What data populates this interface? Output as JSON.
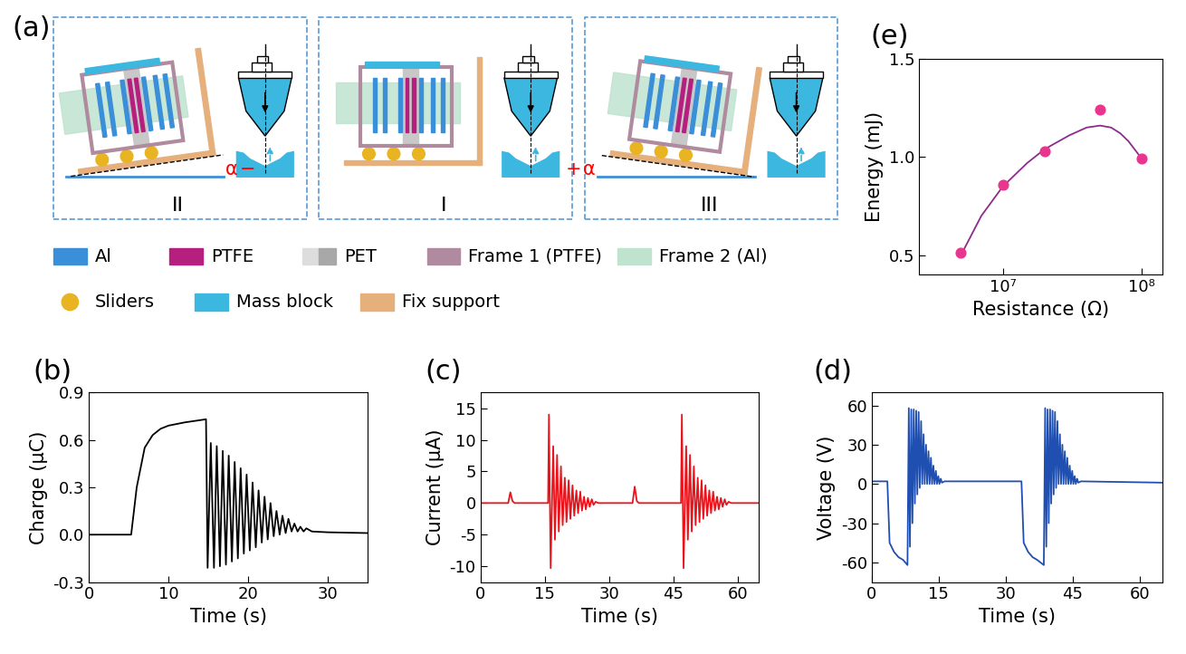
{
  "diagram": {
    "title": "(a)",
    "states": [
      {
        "label": "II",
        "angle": "α",
        "sign": "−"
      },
      {
        "label": "I"
      },
      {
        "label": "III",
        "angle": "α",
        "sign": "+"
      }
    ],
    "legend": [
      {
        "label": "Al",
        "color": "#3b8fd9"
      },
      {
        "label": "PTFE",
        "color": "#b5207e"
      },
      {
        "label": "PET",
        "color": "#c8c8c8"
      },
      {
        "label": "Frame 1 (PTFE)",
        "color": "#b08a9e"
      },
      {
        "label": "Frame 2 (Al)",
        "color": "#bfe3cf"
      },
      {
        "label": "Sliders",
        "color": "#e8b422"
      },
      {
        "label": "Mass block",
        "color": "#3cb7e0"
      },
      {
        "label": "Fix support",
        "color": "#e6b07c"
      }
    ]
  },
  "chart_data": [
    {
      "type": "line",
      "title": "(b)",
      "x_label": "Time (s)",
      "y_label": "Charge (μC)",
      "color": "#000000",
      "x": [
        0,
        5.3,
        6,
        7,
        8,
        9,
        10,
        12,
        14.7,
        14.9,
        15.3,
        15.7,
        16.05,
        16.45,
        16.8,
        17.2,
        17.55,
        17.95,
        18.3,
        18.7,
        19.05,
        19.45,
        19.8,
        20.2,
        20.55,
        20.95,
        21.3,
        21.7,
        22.05,
        22.45,
        22.8,
        23.2,
        23.55,
        23.95,
        24.3,
        24.7,
        25.05,
        25.45,
        25.8,
        26.2,
        26.55,
        26.95,
        27.3,
        28,
        30,
        35
      ],
      "values": [
        0,
        0,
        0.3,
        0.55,
        0.63,
        0.67,
        0.69,
        0.71,
        0.73,
        -0.21,
        0.58,
        -0.21,
        0.56,
        -0.2,
        0.53,
        -0.19,
        0.5,
        -0.17,
        0.46,
        -0.15,
        0.42,
        -0.12,
        0.38,
        -0.1,
        0.33,
        -0.08,
        0.28,
        -0.05,
        0.24,
        -0.03,
        0.2,
        -0.01,
        0.15,
        0,
        0.12,
        0.01,
        0.1,
        0.02,
        0.07,
        0.02,
        0.05,
        0.02,
        0.04,
        0.02,
        0.015,
        0.01
      ],
      "xlim": [
        0,
        35
      ],
      "ylim": [
        -0.3,
        0.9
      ],
      "xticks": [
        0,
        10,
        20,
        30
      ],
      "yticks": [
        -0.3,
        {
          "value": 0,
          "label": "0.0"
        },
        0.3,
        0.6,
        0.9
      ]
    },
    {
      "type": "line",
      "title": "(c)",
      "x_label": "Time (s)",
      "y_label": "Current (μA)",
      "color": "#e8141c",
      "x": [
        0,
        6.5,
        7.0,
        7.5,
        8.0,
        15.8,
        16.0,
        16.4,
        17.0,
        17.4,
        17.9,
        18.3,
        18.8,
        19.2,
        19.7,
        20.1,
        20.6,
        21.0,
        21.5,
        21.9,
        22.4,
        22.8,
        23.3,
        23.7,
        24.2,
        24.6,
        25.1,
        25.5,
        26.0,
        26.4,
        26.9,
        27.5,
        35.5,
        36.0,
        36.5,
        37.0,
        46.8,
        47.0,
        47.4,
        48.0,
        48.4,
        48.9,
        49.3,
        49.8,
        50.2,
        50.7,
        51.1,
        51.6,
        52.0,
        52.5,
        52.9,
        53.4,
        53.8,
        54.3,
        54.7,
        55.2,
        55.6,
        56.1,
        56.5,
        57.0,
        57.4,
        57.9,
        58.5,
        65
      ],
      "values": [
        0,
        0,
        1.7,
        0.3,
        0,
        0,
        14.0,
        -10.3,
        9.0,
        -5.8,
        7.6,
        -4.5,
        5.8,
        -3.5,
        4.0,
        -3.0,
        3.6,
        -2.5,
        2.8,
        -2.0,
        2.0,
        -1.6,
        1.8,
        -1.2,
        1.0,
        -1.0,
        0.8,
        -0.6,
        0.6,
        -0.3,
        0.2,
        0,
        0,
        2.6,
        0.3,
        0,
        0,
        14.0,
        -10.3,
        9.0,
        -5.8,
        7.6,
        -4.5,
        5.8,
        -3.5,
        4.0,
        -3.0,
        3.6,
        -2.5,
        2.8,
        -2.0,
        2.0,
        -1.6,
        1.8,
        -1.2,
        1.0,
        -1.0,
        0.8,
        -0.6,
        0.6,
        -0.3,
        0.2,
        0,
        0
      ],
      "xlim": [
        0,
        65
      ],
      "ylim": [
        -12.5,
        17.5
      ],
      "xticks": [
        0,
        15,
        30,
        45,
        60
      ],
      "yticks": [
        -10,
        -5,
        0,
        5,
        10,
        15
      ]
    },
    {
      "type": "line",
      "title": "(d)",
      "x_label": "Time (s)",
      "y_label": "Voltage (V)",
      "color": "#1f4fb0",
      "x": [
        0,
        3.5,
        4.0,
        5.0,
        6.0,
        7.0,
        8.0,
        8.3,
        8.55,
        8.85,
        9.1,
        9.4,
        9.65,
        9.95,
        10.2,
        10.5,
        10.75,
        11.05,
        11.3,
        11.6,
        11.85,
        12.15,
        12.4,
        12.7,
        12.95,
        13.25,
        13.5,
        13.8,
        14.05,
        14.35,
        14.6,
        14.9,
        15.15,
        15.45,
        15.7,
        16.3,
        33.5,
        34.0,
        35.0,
        36.0,
        37.0,
        38.5,
        38.8,
        39.05,
        39.35,
        39.6,
        39.9,
        40.15,
        40.45,
        40.7,
        41.0,
        41.25,
        41.55,
        41.8,
        42.1,
        42.35,
        42.65,
        42.9,
        43.2,
        43.45,
        43.75,
        44.0,
        44.3,
        44.55,
        44.85,
        45.1,
        45.4,
        45.65,
        45.95,
        46.2,
        46.8,
        65
      ],
      "values": [
        2,
        2,
        -45,
        -52,
        -56,
        -58,
        -62,
        58,
        -48,
        57,
        -30,
        57,
        -15,
        56,
        -8,
        55,
        -3,
        48,
        0,
        38,
        0,
        30,
        0,
        25,
        0,
        20,
        0,
        14,
        0,
        10,
        0,
        6,
        0,
        4,
        1,
        2,
        2,
        -45,
        -52,
        -56,
        -58,
        -62,
        58,
        -48,
        57,
        -30,
        57,
        -15,
        56,
        -8,
        55,
        -3,
        48,
        0,
        38,
        0,
        30,
        0,
        25,
        0,
        20,
        0,
        14,
        0,
        10,
        0,
        6,
        0,
        4,
        1,
        2,
        1
      ],
      "xlim": [
        0,
        65
      ],
      "ylim": [
        -75,
        70
      ],
      "xticks": [
        0,
        15,
        30,
        45,
        60
      ],
      "yticks": [
        -60,
        -30,
        0,
        30,
        60
      ]
    },
    {
      "type": "scatter",
      "title": "(e)",
      "x_label": "Resistance (Ω)",
      "y_label": "Energy (mJ)",
      "log": "x",
      "series": [
        {
          "type": "line",
          "color": "#8e2a8e",
          "x": [
            5000000,
            7000000,
            10000000,
            15000000,
            20000000,
            30000000,
            40000000,
            50000000,
            60000000,
            70000000,
            80000000,
            100000000
          ],
          "values": [
            0.5,
            0.7,
            0.85,
            0.97,
            1.04,
            1.11,
            1.15,
            1.16,
            1.15,
            1.12,
            1.08,
            0.99
          ]
        },
        {
          "type": "scatter",
          "color": "#e8368f",
          "marker": "o",
          "x": [
            5000000,
            10000000,
            20000000,
            50000000,
            100000000
          ],
          "values": [
            0.51,
            0.86,
            1.03,
            1.24,
            0.99
          ]
        }
      ],
      "xlim": [
        2500000,
        140000000
      ],
      "ylim": [
        0.4,
        1.5
      ],
      "xticks": [
        {
          "value": 10000000,
          "label": "10⁷"
        },
        {
          "value": 100000000,
          "label": "10⁸"
        }
      ],
      "yticks": [
        0.5,
        {
          "value": 1.0,
          "label": "1.0"
        },
        1.5
      ]
    }
  ]
}
